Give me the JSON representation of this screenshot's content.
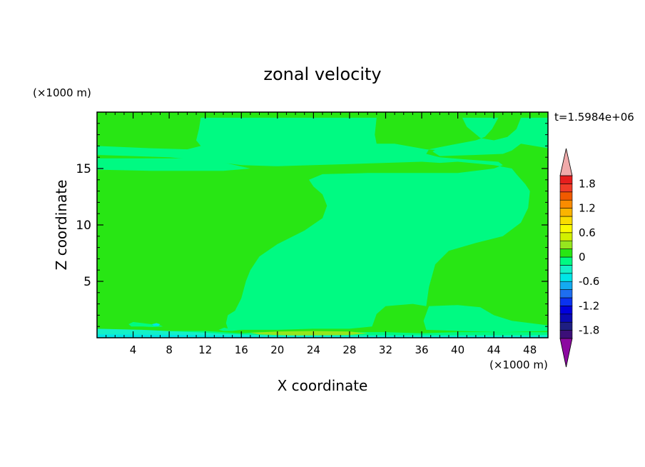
{
  "chart_data": {
    "type": "heatmap",
    "title": "zonal velocity",
    "xlabel": "X coordinate",
    "ylabel": "Z coordinate",
    "x_unit": "(×1000 m)",
    "y_unit": "(×1000 m)",
    "time_label": "t=1.5984e+06",
    "xlim": [
      0,
      50
    ],
    "ylim": [
      0,
      20
    ],
    "x_ticks": [
      4,
      8,
      12,
      16,
      20,
      24,
      28,
      32,
      36,
      40,
      44,
      48
    ],
    "y_ticks": [
      5,
      10,
      15
    ],
    "colorbar": {
      "levels": [
        -2.0,
        -1.8,
        -1.6,
        -1.4,
        -1.2,
        -1.0,
        -0.8,
        -0.6,
        -0.4,
        -0.2,
        0,
        0.2,
        0.4,
        0.6,
        0.8,
        1.0,
        1.2,
        1.4,
        1.6,
        1.8,
        2.0
      ],
      "colors": [
        "#3c0f78",
        "#1e1e82",
        "#0a0ab4",
        "#0000dc",
        "#0a32f0",
        "#1e6ef0",
        "#14aaf0",
        "#00e6e6",
        "#14f0c8",
        "#00fa82",
        "#28e614",
        "#96e61e",
        "#d2f000",
        "#fafa00",
        "#fadc00",
        "#fab400",
        "#fa8c00",
        "#f05a00",
        "#f03c28",
        "#e61e1e"
      ],
      "under_color": "#8c0aa0",
      "over_color": "#f0aaaa",
      "labels": [
        "1.8",
        "1.2",
        "0.6",
        "0",
        "-0.6",
        "-1.2",
        "-1.8"
      ],
      "label_values": [
        1.8,
        1.2,
        0.6,
        0,
        -0.6,
        -1.2,
        -1.8
      ]
    },
    "background_color": "#28e614",
    "regions": [
      {
        "level": "0 to 0.2",
        "color": "#00fa82",
        "points": [
          [
            0,
            19.5
          ],
          [
            0,
            16.2
          ],
          [
            4,
            16.1
          ],
          [
            8,
            16.0
          ],
          [
            12,
            15.7
          ],
          [
            16,
            15.3
          ],
          [
            20,
            15.2
          ],
          [
            24,
            15.3
          ],
          [
            28,
            15.4
          ],
          [
            32,
            15.5
          ],
          [
            36,
            15.6
          ],
          [
            38,
            15.5
          ],
          [
            40,
            15.6
          ],
          [
            44,
            15.3
          ],
          [
            46,
            15.0
          ],
          [
            46.5,
            14.5
          ],
          [
            47.5,
            13.6
          ],
          [
            48,
            13.0
          ],
          [
            47.8,
            11.5
          ],
          [
            47,
            10.2
          ],
          [
            45,
            9.0
          ],
          [
            42,
            8.4
          ],
          [
            39,
            7.7
          ],
          [
            37.5,
            6.5
          ],
          [
            36.8,
            4.5
          ],
          [
            36.5,
            2.8
          ],
          [
            35,
            3.0
          ],
          [
            32,
            2.8
          ],
          [
            31,
            2.1
          ],
          [
            30.5,
            1.0
          ],
          [
            28,
            0.8
          ],
          [
            24,
            0.8
          ],
          [
            20,
            0.7
          ],
          [
            16,
            0.7
          ],
          [
            14.5,
            0.8
          ],
          [
            14.3,
            1.3
          ],
          [
            14.5,
            2.0
          ],
          [
            15.3,
            2.4
          ],
          [
            16,
            3.5
          ],
          [
            16.5,
            5
          ],
          [
            17,
            6
          ],
          [
            18,
            7.2
          ],
          [
            20,
            8.3
          ],
          [
            23,
            9.5
          ],
          [
            25,
            10.6
          ],
          [
            25.5,
            11.7
          ],
          [
            25,
            12.7
          ],
          [
            24,
            13.4
          ],
          [
            23.5,
            14.0
          ],
          [
            25,
            14.5
          ],
          [
            30,
            14.6
          ],
          [
            36,
            14.6
          ],
          [
            40,
            14.6
          ],
          [
            44,
            15.0
          ],
          [
            45,
            15.3
          ],
          [
            44.5,
            15.6
          ],
          [
            41,
            15.8
          ],
          [
            38,
            16.0
          ],
          [
            36.5,
            16.3
          ],
          [
            36.8,
            16.7
          ],
          [
            40,
            17.2
          ],
          [
            42,
            17.5
          ],
          [
            43,
            17.8
          ],
          [
            43.8,
            18.5
          ],
          [
            44.5,
            19.5
          ],
          [
            44,
            19.5
          ],
          [
            42,
            19.5
          ],
          [
            40.5,
            19.5
          ],
          [
            41,
            18.7
          ],
          [
            42.5,
            17.7
          ],
          [
            44,
            17.5
          ],
          [
            45.5,
            17.8
          ],
          [
            46.5,
            18.5
          ],
          [
            47,
            19.5
          ],
          [
            50,
            19.5
          ],
          [
            50,
            16.8
          ],
          [
            47,
            17.2
          ],
          [
            46,
            16.6
          ],
          [
            45,
            16.3
          ],
          [
            42,
            16.2
          ],
          [
            38,
            16.1
          ],
          [
            37.2,
            16.5
          ],
          [
            38,
            16.9
          ],
          [
            40,
            17.0
          ],
          [
            42,
            16.4
          ],
          [
            36.5,
            16.7
          ],
          [
            33,
            17.2
          ],
          [
            31,
            17.2
          ],
          [
            30.8,
            18.0
          ],
          [
            31,
            19.5
          ],
          [
            11.5,
            19.5
          ],
          [
            11.3,
            18.5
          ],
          [
            11,
            17.5
          ],
          [
            11.5,
            17.0
          ],
          [
            10,
            16.7
          ],
          [
            6,
            16.8
          ],
          [
            0,
            17.0
          ]
        ]
      },
      {
        "level": "0 to 0.2",
        "color": "#00fa82",
        "points": [
          [
            0,
            15.9
          ],
          [
            12,
            15.9
          ],
          [
            17,
            15.0
          ],
          [
            14,
            14.8
          ],
          [
            6,
            14.8
          ],
          [
            0,
            14.9
          ]
        ]
      },
      {
        "level": "0 to 0.2",
        "color": "#00fa82",
        "points": [
          [
            36.8,
            2.8
          ],
          [
            40,
            2.9
          ],
          [
            42.5,
            2.7
          ],
          [
            44,
            2.0
          ],
          [
            46,
            1.5
          ],
          [
            50,
            1.1
          ],
          [
            50,
            0.6
          ],
          [
            45,
            0.5
          ],
          [
            40,
            0.6
          ],
          [
            36.5,
            0.7
          ],
          [
            36.2,
            1.5
          ]
        ]
      },
      {
        "level": "0 to 0.2",
        "color": "#00fa82",
        "points": [
          [
            0,
            0.8
          ],
          [
            3,
            0.6
          ],
          [
            8,
            0.6
          ],
          [
            12,
            0.6
          ],
          [
            14,
            0.5
          ],
          [
            16,
            0.4
          ],
          [
            18,
            0.5
          ],
          [
            22,
            0.4
          ],
          [
            28,
            0.5
          ],
          [
            32,
            0.5
          ],
          [
            36,
            0.4
          ],
          [
            40,
            0.5
          ],
          [
            46,
            0.5
          ],
          [
            50,
            0.5
          ],
          [
            50,
            0
          ],
          [
            0,
            0
          ]
        ]
      },
      {
        "level": "0 to 0.2",
        "color": "#00fa82",
        "points": [
          [
            3.5,
            1.2
          ],
          [
            4,
            1.4
          ],
          [
            6,
            1.2
          ],
          [
            7,
            1.1
          ],
          [
            7.3,
            1.0
          ],
          [
            6.2,
            0.95
          ],
          [
            5,
            1.0
          ],
          [
            3.8,
            1.0
          ]
        ]
      },
      {
        "level": "0.2 to 0.4",
        "color": "#96e61e",
        "points": [
          [
            17,
            0.45
          ],
          [
            20,
            0.55
          ],
          [
            24,
            0.6
          ],
          [
            28,
            0.55
          ],
          [
            30,
            0.4
          ],
          [
            28,
            0.25
          ],
          [
            22,
            0.2
          ],
          [
            18,
            0.3
          ]
        ]
      },
      {
        "level": "-0.4 to -0.2",
        "color": "#14f0c8",
        "points": [
          [
            0,
            0.8
          ],
          [
            5,
            0.7
          ],
          [
            9,
            0.55
          ],
          [
            12,
            0.45
          ],
          [
            14,
            0.35
          ],
          [
            20,
            0.2
          ],
          [
            30,
            0.2
          ],
          [
            40,
            0.2
          ],
          [
            48,
            0.2
          ],
          [
            50,
            0.25
          ],
          [
            50,
            0
          ],
          [
            0,
            0
          ]
        ]
      },
      {
        "level": "-0.6 to -0.4",
        "color": "#00e6e6",
        "points": [
          [
            6.1,
            1.2
          ],
          [
            6.6,
            1.3
          ],
          [
            7.0,
            1.2
          ],
          [
            6.8,
            1.05
          ],
          [
            6.3,
            1.05
          ]
        ]
      },
      {
        "level": "-0.6 to -0.4",
        "color": "#00e6e6",
        "points": [
          [
            0,
            0.3
          ],
          [
            10,
            0.25
          ],
          [
            20,
            0.1
          ],
          [
            36,
            0.1
          ],
          [
            50,
            0.1
          ],
          [
            50,
            0
          ],
          [
            0,
            0
          ]
        ]
      },
      {
        "level": "0 to 0.2",
        "color": "#00fa82",
        "points": [
          [
            13.5,
            0.7
          ],
          [
            14.1,
            0.9
          ],
          [
            14.6,
            0.8
          ],
          [
            15,
            0.95
          ],
          [
            15.6,
            0.85
          ],
          [
            16,
            0.7
          ],
          [
            15,
            0.6
          ],
          [
            14,
            0.6
          ]
        ]
      }
    ]
  }
}
